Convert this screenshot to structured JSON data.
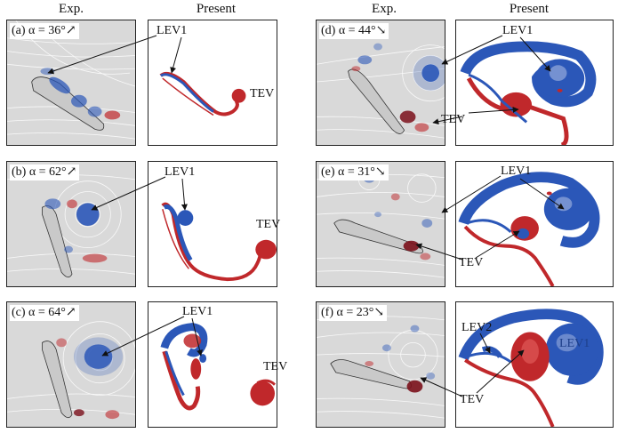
{
  "headers": {
    "exp": "Exp.",
    "present": "Present"
  },
  "panels": [
    {
      "id": "a",
      "label": "(a) α = 36°↗"
    },
    {
      "id": "b",
      "label": "(b) α = 62°↗"
    },
    {
      "id": "c",
      "label": "(c) α = 64°↗"
    },
    {
      "id": "d",
      "label": "(d) α = 44°↘"
    },
    {
      "id": "e",
      "label": "(e) α = 31°↘"
    },
    {
      "id": "f",
      "label": "(f) α = 23°↘"
    }
  ],
  "annotations": {
    "lev1": "LEV1",
    "lev2": "LEV2",
    "tev": "TEV"
  },
  "colors": {
    "red": "#c0282b",
    "blue": "#2b57b8",
    "dark": "#7a0f1a",
    "gray": "#d9d9d9"
  }
}
